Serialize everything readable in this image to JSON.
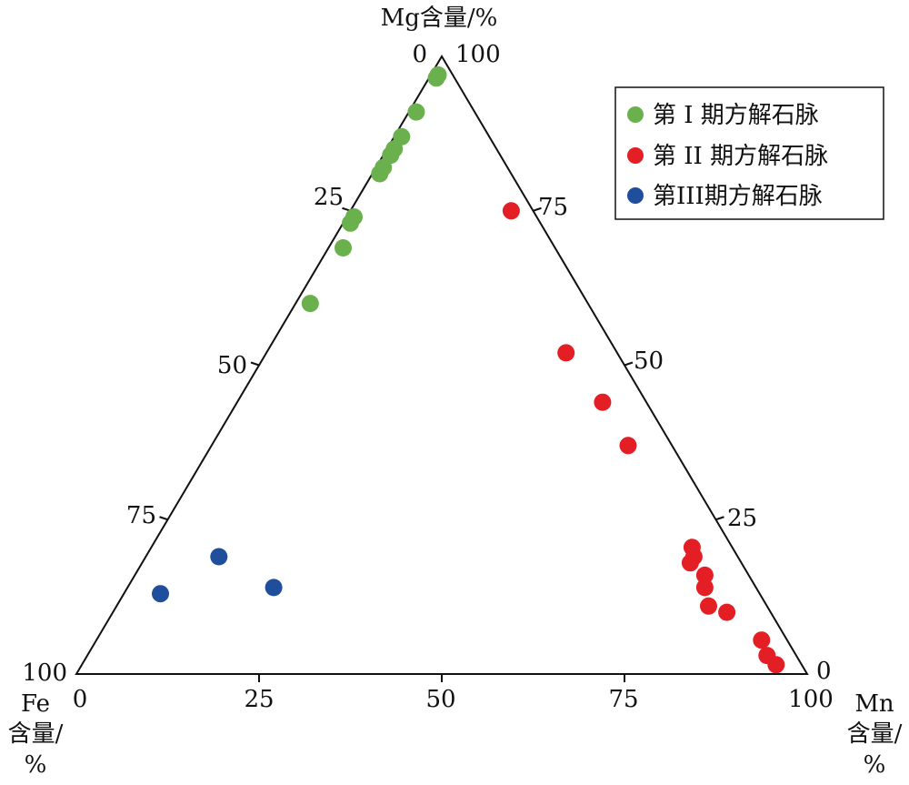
{
  "chart_data": {
    "type": "scatter",
    "subtype": "ternary",
    "axes": {
      "top": {
        "label": "Mg含量/%",
        "element": "Mg"
      },
      "left": {
        "label_line1": "Fe",
        "label_line2": "含量/",
        "label_line3": "%",
        "element": "Fe"
      },
      "right": {
        "label_line1": "Mn",
        "label_line2": "含量/",
        "label_line3": "%",
        "element": "Mn"
      }
    },
    "ticks": {
      "bottom": [
        "0",
        "25",
        "50",
        "75",
        "100"
      ],
      "left": [
        "100",
        "75",
        "50",
        "25",
        "0"
      ],
      "right": [
        "0",
        "25",
        "50",
        "75",
        "100"
      ]
    },
    "legend": {
      "placement": "top-right",
      "items": [
        {
          "label": "第 I 期方解石脉",
          "color": "#6ab04c"
        },
        {
          "label": "第 II 期方解石脉",
          "color": "#e31e24"
        },
        {
          "label": "第III期方解石脉",
          "color": "#1f4e9c"
        }
      ]
    },
    "series": [
      {
        "name": "第 I 期方解石脉",
        "color": "#6ab04c",
        "points": [
          {
            "Mg": 97,
            "Mn": 1,
            "Fe": 2
          },
          {
            "Mg": 96.5,
            "Mn": 1,
            "Fe": 2.5
          },
          {
            "Mg": 91,
            "Mn": 1,
            "Fe": 8
          },
          {
            "Mg": 87,
            "Mn": 1,
            "Fe": 12
          },
          {
            "Mg": 85,
            "Mn": 1,
            "Fe": 14
          },
          {
            "Mg": 84,
            "Mn": 1,
            "Fe": 15
          },
          {
            "Mg": 82,
            "Mn": 1,
            "Fe": 17
          },
          {
            "Mg": 81,
            "Mn": 1,
            "Fe": 18
          },
          {
            "Mg": 74,
            "Mn": 1,
            "Fe": 25
          },
          {
            "Mg": 73,
            "Mn": 1,
            "Fe": 26
          },
          {
            "Mg": 69,
            "Mn": 2,
            "Fe": 29
          },
          {
            "Mg": 60,
            "Mn": 2,
            "Fe": 38
          }
        ]
      },
      {
        "name": "第 II 期方解石脉",
        "color": "#e31e24",
        "points": [
          {
            "Mg": 75,
            "Mn": 22,
            "Fe": 3
          },
          {
            "Mg": 52,
            "Mn": 41,
            "Fe": 7
          },
          {
            "Mg": 44,
            "Mn": 50,
            "Fe": 6
          },
          {
            "Mg": 37,
            "Mn": 57,
            "Fe": 6
          },
          {
            "Mg": 20.5,
            "Mn": 74,
            "Fe": 5.5
          },
          {
            "Mg": 19,
            "Mn": 75,
            "Fe": 6
          },
          {
            "Mg": 18,
            "Mn": 75,
            "Fe": 7
          },
          {
            "Mg": 16,
            "Mn": 78,
            "Fe": 6
          },
          {
            "Mg": 14,
            "Mn": 79,
            "Fe": 7
          },
          {
            "Mg": 11,
            "Mn": 81,
            "Fe": 8
          },
          {
            "Mg": 10,
            "Mn": 84,
            "Fe": 6
          },
          {
            "Mg": 5.5,
            "Mn": 91,
            "Fe": 3.5
          },
          {
            "Mg": 3,
            "Mn": 93,
            "Fe": 4
          },
          {
            "Mg": 1.5,
            "Mn": 95,
            "Fe": 3.5
          }
        ]
      },
      {
        "name": "第III期方解石脉",
        "color": "#1f4e9c",
        "points": [
          {
            "Mg": 19,
            "Mn": 10,
            "Fe": 71
          },
          {
            "Mg": 13,
            "Mn": 5,
            "Fe": 82
          },
          {
            "Mg": 14,
            "Mn": 20,
            "Fe": 66
          }
        ]
      }
    ]
  }
}
